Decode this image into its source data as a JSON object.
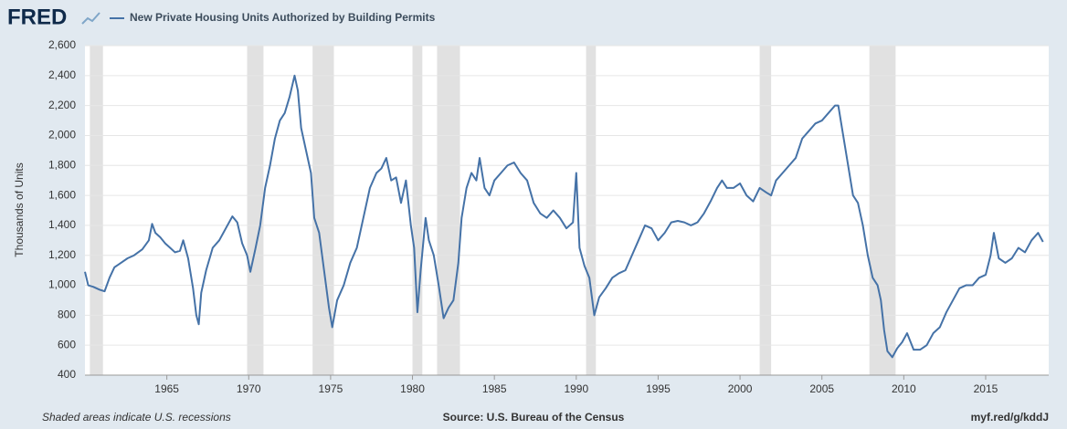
{
  "chart_data": {
    "type": "line",
    "logo": "FRED",
    "y_label": "Thousands of Units",
    "note": "Shaded areas indicate U.S. recessions",
    "source": "Source: U.S. Bureau of the Census",
    "url": "myf.red/g/kddJ",
    "xlim": [
      1960,
      2018.85
    ],
    "xticks": [
      1965,
      1970,
      1975,
      1980,
      1985,
      1990,
      1995,
      2000,
      2005,
      2010,
      2015
    ],
    "ylim": [
      400,
      2600
    ],
    "yticks": [
      {
        "value": 400,
        "label": "400"
      },
      {
        "value": 600,
        "label": "600"
      },
      {
        "value": 800,
        "label": "800"
      },
      {
        "value": 1000,
        "label": "1,000"
      },
      {
        "value": 1200,
        "label": "1,200"
      },
      {
        "value": 1400,
        "label": "1,400"
      },
      {
        "value": 1600,
        "label": "1,600"
      },
      {
        "value": 1800,
        "label": "1,800"
      },
      {
        "value": 2000,
        "label": "2,000"
      },
      {
        "value": 2200,
        "label": "2,200"
      },
      {
        "value": 2400,
        "label": "2,400"
      },
      {
        "value": 2600,
        "label": "2,600"
      }
    ],
    "grid": true,
    "recession_color": "#e1e1e1",
    "recessions": [
      [
        1960.3,
        1961.1
      ],
      [
        1969.9,
        1970.9
      ],
      [
        1973.9,
        1975.2
      ],
      [
        1980.0,
        1980.6
      ],
      [
        1981.5,
        1982.9
      ],
      [
        1990.6,
        1991.2
      ],
      [
        2001.2,
        2001.9
      ],
      [
        2007.9,
        2009.5
      ]
    ],
    "series": [
      {
        "name": "New Private Housing Units Authorized by Building Permits",
        "color": "#4572a7",
        "x": [
          1960.0,
          1960.2,
          1960.5,
          1960.9,
          1961.2,
          1961.5,
          1961.8,
          1962.2,
          1962.6,
          1963.0,
          1963.5,
          1963.9,
          1964.1,
          1964.3,
          1964.6,
          1964.9,
          1965.2,
          1965.5,
          1965.8,
          1966.0,
          1966.3,
          1966.6,
          1966.8,
          1966.95,
          1967.1,
          1967.4,
          1967.8,
          1968.2,
          1968.6,
          1969.0,
          1969.3,
          1969.6,
          1969.9,
          1970.1,
          1970.4,
          1970.7,
          1971.0,
          1971.3,
          1971.6,
          1971.9,
          1972.2,
          1972.5,
          1972.8,
          1973.0,
          1973.2,
          1973.5,
          1973.8,
          1974.0,
          1974.3,
          1974.6,
          1974.9,
          1975.1,
          1975.4,
          1975.8,
          1976.2,
          1976.6,
          1977.0,
          1977.4,
          1977.8,
          1978.1,
          1978.4,
          1978.7,
          1979.0,
          1979.3,
          1979.6,
          1979.9,
          1980.1,
          1980.3,
          1980.5,
          1980.8,
          1981.0,
          1981.3,
          1981.6,
          1981.9,
          1982.2,
          1982.5,
          1982.8,
          1983.0,
          1983.3,
          1983.6,
          1983.9,
          1984.1,
          1984.4,
          1984.7,
          1985.0,
          1985.4,
          1985.8,
          1986.2,
          1986.6,
          1987.0,
          1987.4,
          1987.8,
          1988.2,
          1988.6,
          1989.0,
          1989.4,
          1989.8,
          1990.0,
          1990.2,
          1990.5,
          1990.8,
          1991.1,
          1991.4,
          1991.8,
          1992.2,
          1992.6,
          1993.0,
          1993.4,
          1993.8,
          1994.2,
          1994.6,
          1995.0,
          1995.4,
          1995.8,
          1996.2,
          1996.6,
          1997.0,
          1997.4,
          1997.8,
          1998.2,
          1998.6,
          1998.9,
          1999.2,
          1999.6,
          2000.0,
          2000.4,
          2000.8,
          2001.2,
          2001.6,
          2001.9,
          2002.2,
          2002.6,
          2003.0,
          2003.4,
          2003.8,
          2004.2,
          2004.6,
          2005.0,
          2005.4,
          2005.8,
          2006.0,
          2006.3,
          2006.6,
          2006.9,
          2007.2,
          2007.5,
          2007.8,
          2008.1,
          2008.4,
          2008.6,
          2008.8,
          2009.0,
          2009.3,
          2009.6,
          2009.9,
          2010.2,
          2010.6,
          2011.0,
          2011.4,
          2011.8,
          2012.2,
          2012.6,
          2013.0,
          2013.4,
          2013.8,
          2014.2,
          2014.6,
          2015.0,
          2015.3,
          2015.5,
          2015.8,
          2016.2,
          2016.6,
          2017.0,
          2017.4,
          2017.8,
          2018.2,
          2018.5
        ],
        "values": [
          1090,
          1000,
          990,
          970,
          960,
          1050,
          1120,
          1150,
          1180,
          1200,
          1240,
          1300,
          1410,
          1350,
          1320,
          1280,
          1250,
          1220,
          1230,
          1300,
          1180,
          980,
          800,
          740,
          950,
          1100,
          1250,
          1300,
          1380,
          1460,
          1420,
          1280,
          1200,
          1090,
          1240,
          1400,
          1650,
          1800,
          1980,
          2100,
          2150,
          2260,
          2400,
          2300,
          2050,
          1900,
          1750,
          1450,
          1350,
          1100,
          850,
          720,
          900,
          1000,
          1150,
          1250,
          1450,
          1650,
          1750,
          1780,
          1850,
          1700,
          1720,
          1550,
          1700,
          1400,
          1250,
          820,
          1100,
          1450,
          1300,
          1200,
          1000,
          780,
          850,
          900,
          1150,
          1450,
          1650,
          1750,
          1700,
          1850,
          1650,
          1600,
          1700,
          1750,
          1800,
          1820,
          1750,
          1700,
          1550,
          1480,
          1450,
          1500,
          1450,
          1380,
          1420,
          1750,
          1250,
          1130,
          1050,
          800,
          920,
          980,
          1050,
          1080,
          1100,
          1200,
          1300,
          1400,
          1380,
          1300,
          1350,
          1420,
          1430,
          1420,
          1400,
          1420,
          1480,
          1560,
          1650,
          1700,
          1650,
          1650,
          1680,
          1600,
          1560,
          1650,
          1620,
          1600,
          1700,
          1750,
          1800,
          1850,
          1980,
          2030,
          2080,
          2100,
          2150,
          2200,
          2200,
          2000,
          1800,
          1600,
          1550,
          1400,
          1200,
          1050,
          1000,
          900,
          700,
          560,
          520,
          580,
          620,
          680,
          570,
          570,
          600,
          680,
          720,
          820,
          900,
          980,
          1000,
          1000,
          1050,
          1070,
          1200,
          1350,
          1180,
          1150,
          1180,
          1250,
          1220,
          1300,
          1350,
          1290
        ]
      }
    ]
  }
}
